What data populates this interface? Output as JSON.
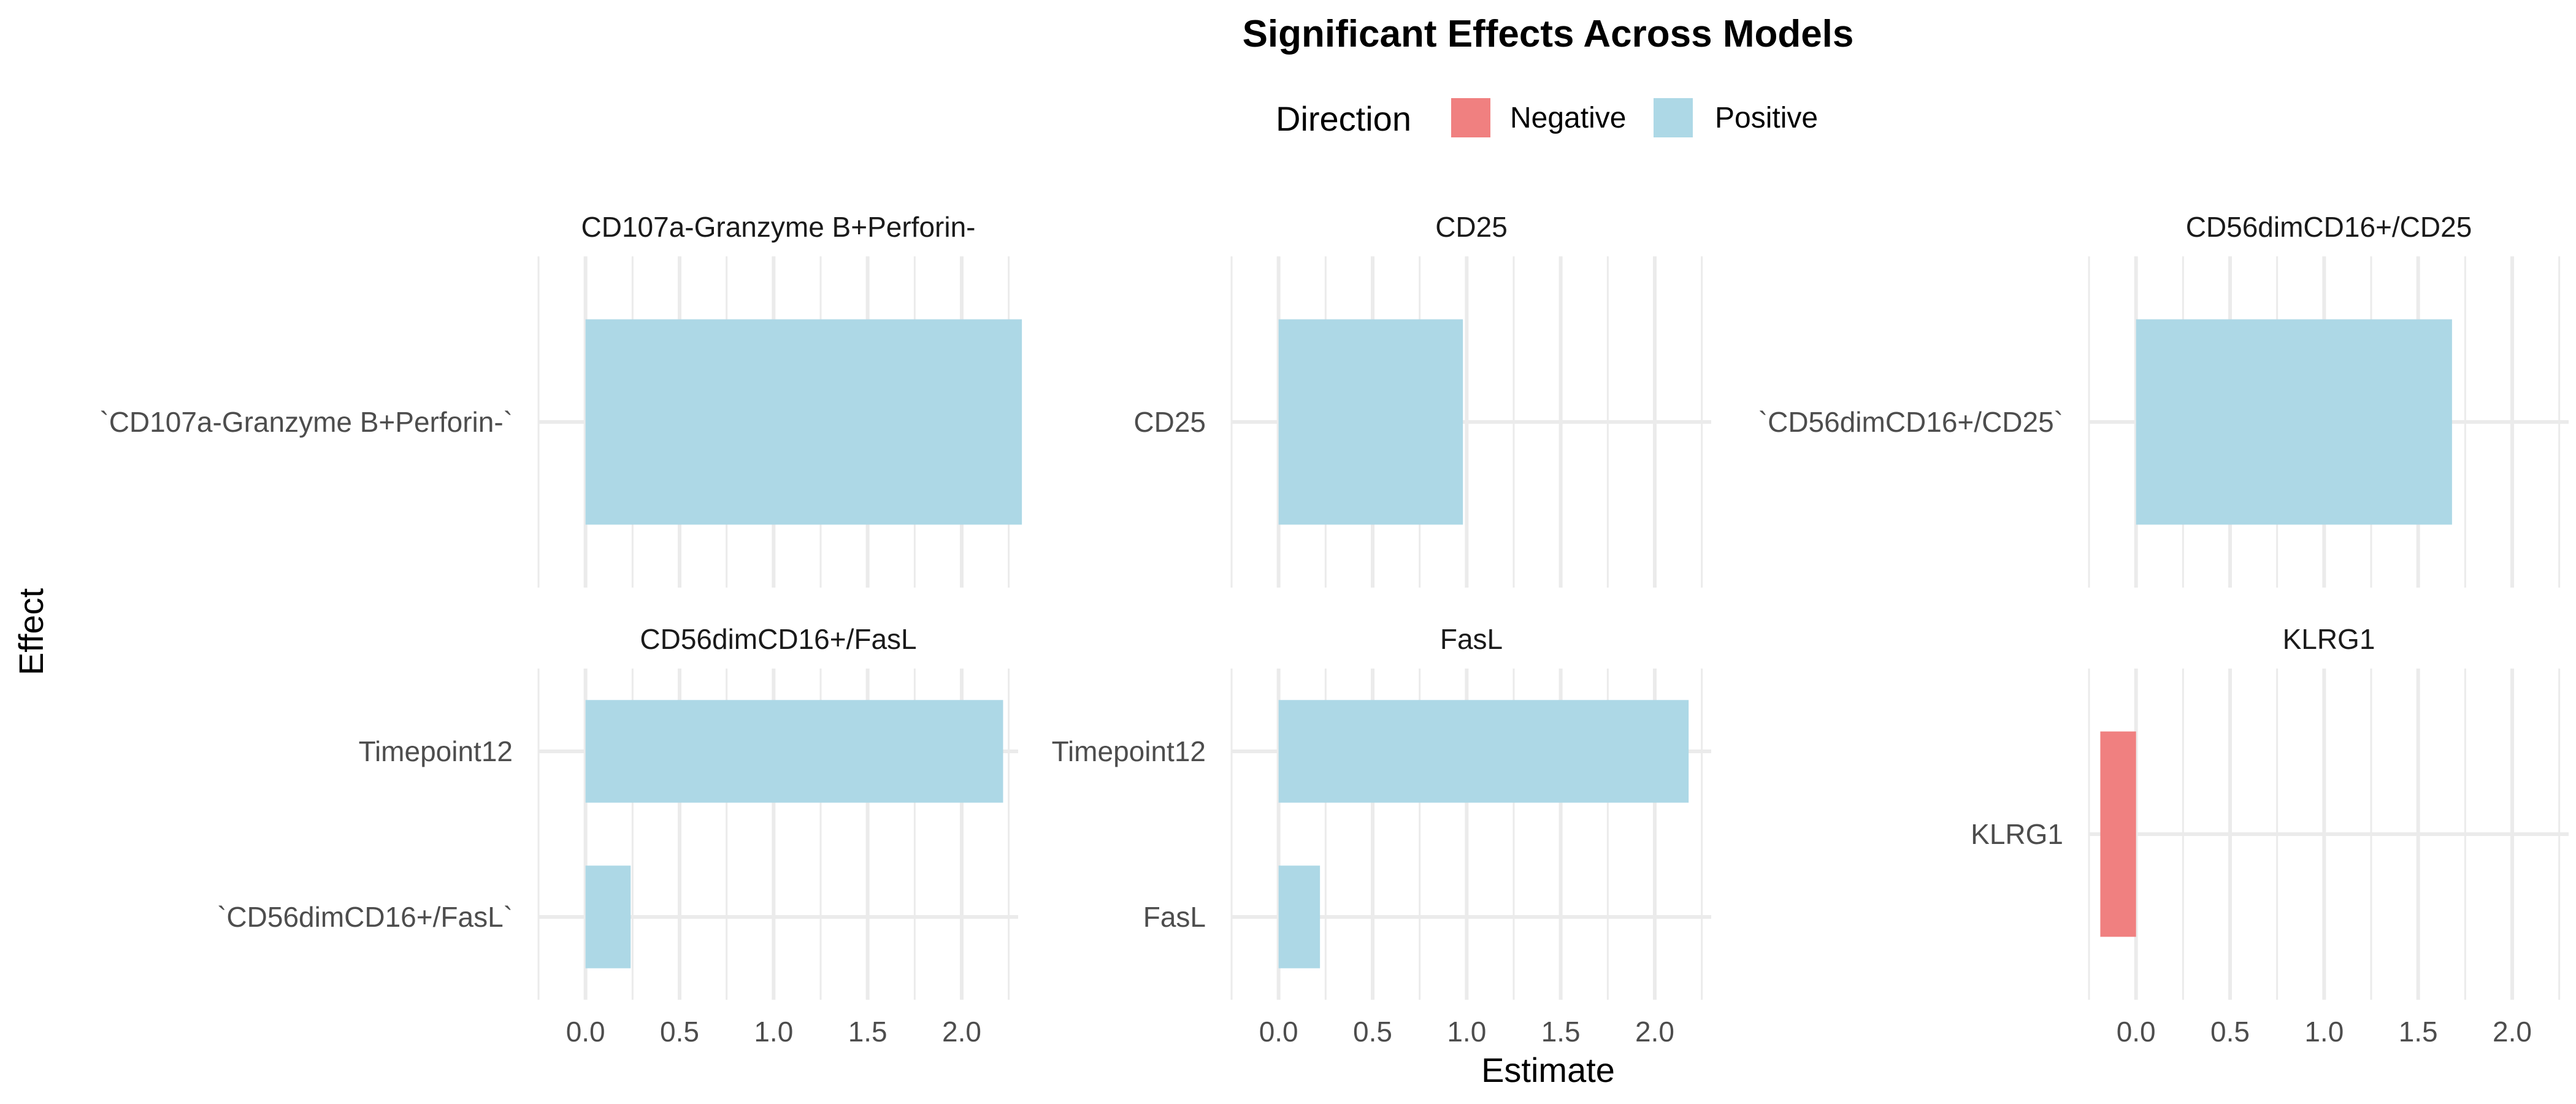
{
  "chart_data": {
    "type": "bar",
    "orientation": "horizontal",
    "title": "Significant Effects Across Models",
    "xlabel": "Estimate",
    "ylabel": "Effect",
    "xlim": [
      -0.25,
      2.3
    ],
    "x_ticks": [
      "0.0",
      "0.5",
      "1.0",
      "1.5",
      "2.0"
    ],
    "grid": true,
    "legend": {
      "title": "Direction",
      "position": "top",
      "entries": [
        {
          "label": "Negative",
          "color": "#F08080"
        },
        {
          "label": "Positive",
          "color": "#ADD8E6"
        }
      ]
    },
    "facets": [
      {
        "title": "CD107a-Granzyme B+Perforin-",
        "bars": [
          {
            "effect": "`CD107a-Granzyme B+Perforin-`",
            "estimate": 2.32,
            "direction": "Positive"
          }
        ]
      },
      {
        "title": "CD25",
        "bars": [
          {
            "effect": "CD25",
            "estimate": 0.98,
            "direction": "Positive"
          }
        ]
      },
      {
        "title": "CD56dimCD16+/CD25",
        "bars": [
          {
            "effect": "`CD56dimCD16+/CD25`",
            "estimate": 1.68,
            "direction": "Positive"
          }
        ]
      },
      {
        "title": "CD56dimCD16+/FasL",
        "bars": [
          {
            "effect": "Timepoint12",
            "estimate": 2.22,
            "direction": "Positive"
          },
          {
            "effect": "`CD56dimCD16+/FasL`",
            "estimate": 0.24,
            "direction": "Positive"
          }
        ]
      },
      {
        "title": "FasL",
        "bars": [
          {
            "effect": "Timepoint12",
            "estimate": 2.18,
            "direction": "Positive"
          },
          {
            "effect": "FasL",
            "estimate": 0.22,
            "direction": "Positive"
          }
        ]
      },
      {
        "title": "KLRG1",
        "bars": [
          {
            "effect": "KLRG1",
            "estimate": -0.19,
            "direction": "Negative"
          }
        ]
      }
    ]
  }
}
